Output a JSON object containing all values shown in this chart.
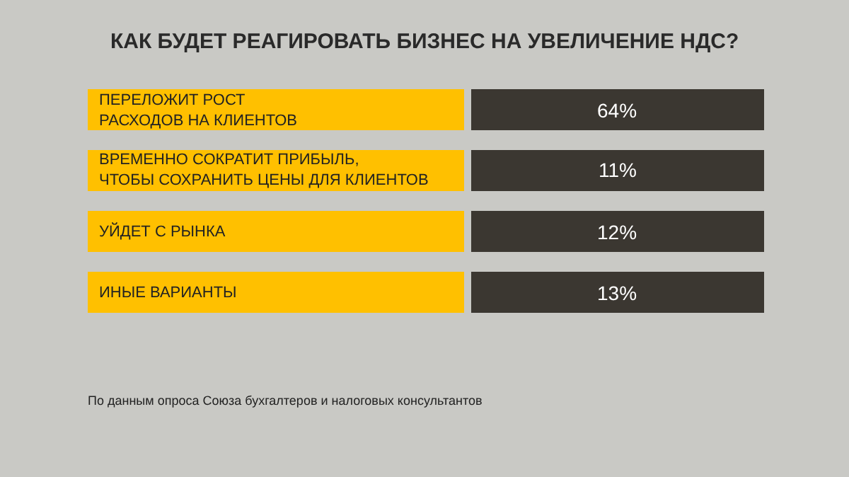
{
  "chart_data": {
    "type": "other",
    "title": "КАК БУДЕТ РЕАГИРОВАТЬ БИЗНЕС НА УВЕЛИЧЕНИЕ НДС?",
    "categories": [
      "ПЕРЕЛОЖИТ РОСТ\nРАСХОДОВ НА КЛИЕНТОВ",
      "ВРЕМЕННО СОКРАТИТ ПРИБЫЛЬ,\nЧТОБЫ СОХРАНИТЬ ЦЕНЫ ДЛЯ КЛИЕНТОВ",
      "УЙДЕТ С РЫНКА",
      "ИНЫЕ ВАРИАНТЫ"
    ],
    "colors": [
      "#ffc000",
      "#ffc000",
      "#ffc000",
      "#ffc000"
    ],
    "series": [
      {
        "color": "#3b3731",
        "values": [
          64,
          11,
          12,
          13
        ],
        "value_labels": [
          "64%",
          "11%",
          "12%",
          "13%"
        ]
      }
    ],
    "annotations": [
      "По данным опроса Союза бухгалтеров и налоговых консультантов"
    ]
  }
}
